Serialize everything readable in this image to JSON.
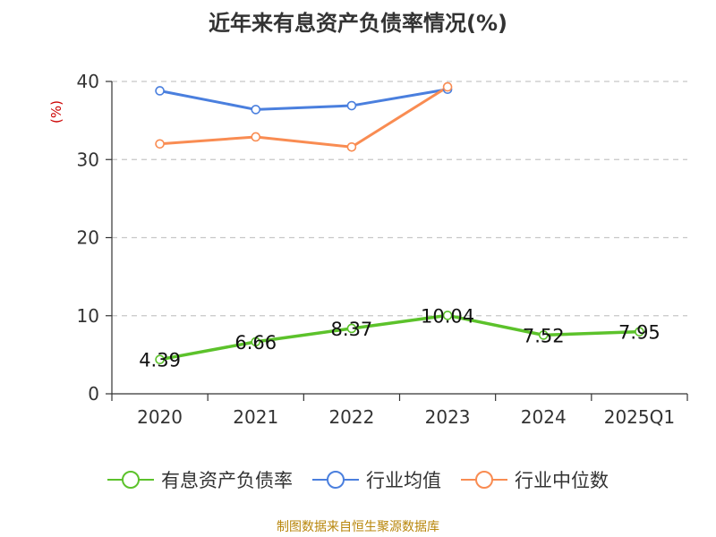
{
  "title": "近年来有息资产负债率情况(%)",
  "source": "制图数据来自恒生聚源数据库",
  "colors": {
    "debt_ratio": "#5cc22b",
    "industry_avg": "#4a7fde",
    "industry_median": "#f98c52",
    "grid": "#c8c8c8",
    "axis": "#333333",
    "unit": "#cc0000",
    "source": "#b8860b"
  },
  "chart_data": {
    "type": "line",
    "title": "近年来有息资产负债率情况(%)",
    "xlabel": "",
    "ylabel": "(%)",
    "categories": [
      "2020",
      "2021",
      "2022",
      "2023",
      "2024",
      "2025Q1"
    ],
    "ylim": [
      0,
      40
    ],
    "yticks": [
      0,
      10,
      20,
      30,
      40
    ],
    "grid": true,
    "legend_position": "bottom",
    "series": [
      {
        "name": "有息资产负债率",
        "values": [
          4.39,
          6.66,
          8.37,
          10.04,
          7.52,
          7.95
        ],
        "labels": [
          "4.39",
          "6.66",
          "8.37",
          "10.04",
          "7.52",
          "7.95"
        ]
      },
      {
        "name": "行业均值",
        "values": [
          38.8,
          36.4,
          36.9,
          39.0,
          null,
          null
        ]
      },
      {
        "name": "行业中位数",
        "values": [
          32.0,
          32.9,
          31.6,
          39.3,
          null,
          null
        ]
      }
    ]
  }
}
